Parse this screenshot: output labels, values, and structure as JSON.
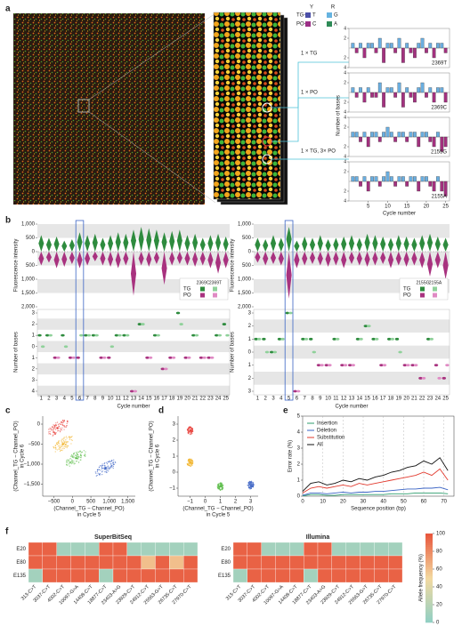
{
  "panel_labels": [
    "a",
    "b",
    "c",
    "d",
    "e",
    "f"
  ],
  "chart_data": [
    {
      "type": "bar",
      "ylabel": "Number of bases",
      "xlabel": "Cycle number",
      "xlim": [
        0,
        26
      ],
      "xticks": [
        5,
        10,
        15,
        20,
        25
      ],
      "ylim": [
        -4,
        4
      ],
      "yticks": [
        {
          "value": -4,
          "label": "4"
        },
        {
          "value": -2,
          "label": "2"
        },
        {
          "value": 2,
          "label": "2"
        },
        {
          "value": 4,
          "label": "4"
        }
      ],
      "colors": {
        "TG": "#6aaee0",
        "PO": "#a3317f"
      },
      "legend": {
        "headers": [
          "Y",
          "R"
        ],
        "rows": [
          "TG-",
          "PO-"
        ],
        "items": [
          {
            "name": "T",
            "color": "#4b4fa8"
          },
          {
            "name": "G",
            "color": "#66b3e0"
          },
          {
            "name": "C",
            "color": "#9c2f86"
          },
          {
            "name": "A",
            "color": "#2e8b57"
          }
        ]
      },
      "annotations": [
        "1 × TG",
        "1 × PO",
        "1 × TG, 3× PO"
      ],
      "subplots": [
        {
          "label": "2369T",
          "values": [
            1,
            -1,
            1,
            -2,
            1,
            1,
            -1,
            2,
            -3,
            1,
            1,
            -1,
            2,
            -3,
            1,
            -1,
            -2,
            1,
            2,
            -1,
            1,
            -2,
            1,
            1,
            -1
          ]
        },
        {
          "label": "2369C",
          "values": [
            1,
            -1,
            1,
            -2,
            1,
            -1,
            -1,
            2,
            -3,
            1,
            1,
            -1,
            2,
            -3,
            1,
            -1,
            -2,
            1,
            2,
            -1,
            1,
            -2,
            1,
            1,
            -2
          ]
        },
        {
          "label": "2155G",
          "values": [
            1,
            1,
            -1,
            1,
            -2,
            1,
            1,
            -1,
            1,
            2,
            1,
            -1,
            1,
            1,
            -1,
            1,
            1,
            -2,
            1,
            1,
            -1,
            -2,
            1,
            -3,
            -2
          ]
        },
        {
          "label": "2155A",
          "values": [
            1,
            1,
            -1,
            1,
            -2,
            1,
            1,
            -1,
            1,
            2,
            1,
            -1,
            1,
            1,
            -1,
            1,
            1,
            -2,
            1,
            1,
            -1,
            -2,
            1,
            -2,
            -3
          ]
        }
      ]
    },
    {
      "type": "violin",
      "ylabel": "Fluorescence intensity",
      "bases_ylabel": "Number of bases",
      "xlabel": "Cycle number",
      "categories": [
        1,
        2,
        3,
        4,
        5,
        6,
        7,
        8,
        9,
        10,
        11,
        12,
        13,
        14,
        15,
        16,
        17,
        18,
        19,
        20,
        21,
        22,
        23,
        24,
        25
      ],
      "highlight": 6,
      "ylim": [
        -2000,
        1000
      ],
      "yticks": [
        {
          "value": 1000,
          "label": "1,000"
        },
        500,
        0,
        {
          "value": -500,
          "label": "500"
        },
        {
          "value": -1000,
          "label": "1,000"
        },
        {
          "value": -1500,
          "label": "1,500"
        },
        {
          "value": -2000,
          "label": "2,000"
        }
      ],
      "tg": [
        600,
        500,
        550,
        400,
        450,
        700,
        600,
        650,
        500,
        600,
        700,
        650,
        800,
        900,
        850,
        800,
        700,
        750,
        800,
        600,
        650,
        500,
        600,
        650,
        550
      ],
      "po": [
        -500,
        -400,
        -600,
        -550,
        -450,
        -600,
        -500,
        -350,
        -500,
        -550,
        -600,
        -500,
        -1600,
        -500,
        -550,
        -450,
        -1200,
        -500,
        -450,
        -500,
        -550,
        -500,
        -600,
        -800,
        -600
      ],
      "colors": {
        "TG": "#2e8b3e",
        "PO": "#a8327f"
      },
      "legend_rows": [
        "TG",
        "PO"
      ],
      "bases_ylim": [
        -4,
        3
      ],
      "bases_yticks": [
        3,
        2,
        1,
        0,
        {
          "value": -1,
          "label": "1"
        },
        {
          "value": -2,
          "label": "2"
        },
        {
          "value": -3,
          "label": "3"
        },
        {
          "value": -4,
          "label": "4"
        }
      ],
      "bases": [
        {
          "name": "2369C",
          "color_tg": "#2e8b3e",
          "color_po": "#a8327f",
          "values": [
            1,
            1,
            -1,
            1,
            -1,
            -1,
            1,
            1,
            -1,
            -1,
            1,
            1,
            -4,
            2,
            -1,
            1,
            -2,
            -1,
            3,
            -1,
            1,
            -1,
            -1,
            1,
            2
          ]
        },
        {
          "name": "2369T",
          "color_tg": "#8fd19a",
          "color_po": "#e08ac4",
          "values": [
            0,
            1,
            -1,
            0,
            -1,
            1,
            1,
            1,
            -1,
            0,
            1,
            1,
            -4,
            2,
            -1,
            1,
            -2,
            -1,
            2,
            -1,
            1,
            -1,
            -1,
            1,
            1
          ]
        }
      ]
    },
    {
      "type": "violin",
      "ylabel": "Fluorescence intensity",
      "bases_ylabel": "Number of bases",
      "xlabel": "Cycle number",
      "categories": [
        1,
        2,
        3,
        4,
        5,
        6,
        7,
        8,
        9,
        10,
        11,
        12,
        13,
        14,
        15,
        16,
        17,
        18,
        19,
        20,
        21,
        22,
        23,
        24,
        25
      ],
      "highlight": 5,
      "ylim": [
        -2000,
        1000
      ],
      "yticks": [
        {
          "value": 1000,
          "label": "1,000"
        },
        500,
        0,
        {
          "value": -500,
          "label": "500"
        },
        {
          "value": -1000,
          "label": "1,000"
        },
        {
          "value": -1500,
          "label": "1,500"
        },
        {
          "value": -2000,
          "label": "2,000"
        }
      ],
      "tg": [
        500,
        450,
        600,
        500,
        900,
        400,
        550,
        500,
        600,
        450,
        500,
        550,
        600,
        500,
        650,
        600,
        550,
        500,
        600,
        550,
        500,
        600,
        650,
        550,
        500
      ],
      "po": [
        -400,
        -500,
        -450,
        -500,
        -1700,
        -600,
        -500,
        -450,
        -500,
        -550,
        -500,
        -600,
        -450,
        -500,
        -550,
        -500,
        -450,
        -600,
        -500,
        -550,
        -500,
        -600,
        -900,
        -600,
        -1000
      ],
      "colors": {
        "TG": "#2e8b3e",
        "PO": "#a8327f"
      },
      "legend_rows": [
        "TG",
        "PO"
      ],
      "bases_ylim": [
        -3,
        3
      ],
      "bases_yticks": [
        3,
        2,
        1,
        0,
        {
          "value": -1,
          "label": "1"
        },
        {
          "value": -2,
          "label": "2"
        },
        {
          "value": -3,
          "label": "3"
        }
      ],
      "bases": [
        {
          "name": "2155G",
          "color_tg": "#2e8b3e",
          "color_po": "#a8327f",
          "values": [
            1,
            1,
            0,
            1,
            3,
            -3,
            1,
            1,
            -1,
            -1,
            1,
            -1,
            -1,
            1,
            2,
            1,
            -1,
            1,
            1,
            -1,
            -1,
            -2,
            1,
            -1,
            -2
          ]
        },
        {
          "name": "2155A",
          "color_tg": "#8fd19a",
          "color_po": "#e08ac4",
          "values": [
            1,
            0,
            0,
            1,
            3,
            -3,
            1,
            0,
            -1,
            -1,
            1,
            -1,
            -1,
            1,
            2,
            1,
            -1,
            1,
            0,
            -1,
            -1,
            -2,
            1,
            -2,
            -1
          ]
        }
      ]
    },
    {
      "type": "scatter",
      "xlabel": [
        "(Channel_TG − Channel_PO)",
        "in Cycle 5"
      ],
      "ylabel": [
        "(Channel_TG − Channel_PO)",
        "in Cycle 6"
      ],
      "xlim": [
        -800,
        1700
      ],
      "ylim": [
        -1800,
        200
      ],
      "xticks": [
        {
          "value": -500,
          "label": "−500"
        },
        0,
        500,
        {
          "value": 1000,
          "label": "1,000"
        },
        {
          "value": 1500,
          "label": "1,500"
        }
      ],
      "yticks": [
        0,
        {
          "value": -500,
          "label": "−500"
        },
        {
          "value": -1000,
          "label": "−1,000"
        },
        {
          "value": -1500,
          "label": "−1,500"
        }
      ],
      "clusters": [
        {
          "x": -400,
          "y": -100,
          "color": "#e8413c"
        },
        {
          "x": -250,
          "y": -500,
          "color": "#f2b632"
        },
        {
          "x": 100,
          "y": -850,
          "color": "#5cbd4a"
        },
        {
          "x": 900,
          "y": -1100,
          "color": "#3a63c4"
        }
      ]
    },
    {
      "type": "scatter",
      "xlabel": [
        "(Channel_TG − Channel_PO)",
        "in Cycle 5"
      ],
      "ylabel": [
        "(Channel_TG − Channel_PO)",
        "in Cycle 6"
      ],
      "xlim": [
        -1.8,
        3.5
      ],
      "ylim": [
        -1.5,
        3.5
      ],
      "xticks": [
        {
          "value": -1,
          "label": "−1"
        },
        0,
        1,
        2,
        3
      ],
      "yticks": [
        {
          "value": -1,
          "label": "−1"
        },
        0,
        1,
        2,
        3
      ],
      "clusters": [
        {
          "x": -1,
          "y": 2.6,
          "color": "#e8413c"
        },
        {
          "x": -1,
          "y": 0.6,
          "color": "#f2b632"
        },
        {
          "x": 1,
          "y": -0.9,
          "color": "#5cbd4a"
        },
        {
          "x": 3,
          "y": -0.8,
          "color": "#3a63c4"
        }
      ]
    },
    {
      "type": "line",
      "xlabel": "Sequence position (bp)",
      "ylabel": "Error rate (%)",
      "xlim": [
        0,
        75
      ],
      "xticks": [
        0,
        10,
        20,
        30,
        40,
        50,
        60,
        70
      ],
      "ylim": [
        0,
        5
      ],
      "yticks": [
        0,
        1,
        2,
        3,
        4,
        5
      ],
      "grid": true,
      "x": [
        0,
        4,
        8,
        12,
        16,
        20,
        24,
        28,
        32,
        36,
        40,
        44,
        48,
        52,
        56,
        60,
        64,
        68,
        72
      ],
      "series": [
        {
          "name": "Insertion",
          "color": "#2e9e6e",
          "values": [
            0.02,
            0.1,
            0.1,
            0.05,
            0.05,
            0.1,
            0.1,
            0.1,
            0.1,
            0.1,
            0.1,
            0.15,
            0.15,
            0.15,
            0.2,
            0.2,
            0.2,
            0.2,
            0.15
          ]
        },
        {
          "name": "Deletion",
          "color": "#3a63c4",
          "values": [
            0.05,
            0.2,
            0.2,
            0.15,
            0.2,
            0.25,
            0.2,
            0.25,
            0.25,
            0.3,
            0.3,
            0.35,
            0.4,
            0.45,
            0.45,
            0.5,
            0.5,
            0.55,
            0.4
          ]
        },
        {
          "name": "Substitution",
          "color": "#e23a2e",
          "values": [
            0.2,
            0.5,
            0.6,
            0.5,
            0.6,
            0.7,
            0.6,
            0.8,
            0.7,
            0.8,
            0.9,
            1.0,
            1.1,
            1.2,
            1.3,
            1.5,
            1.3,
            1.7,
            1.0
          ]
        },
        {
          "name": "All",
          "color": "#111111",
          "values": [
            0.3,
            0.8,
            0.9,
            0.7,
            0.8,
            1.0,
            0.9,
            1.1,
            1.0,
            1.2,
            1.3,
            1.5,
            1.6,
            1.8,
            1.9,
            2.2,
            2.0,
            2.4,
            1.6
          ]
        }
      ]
    },
    {
      "type": "heatmap",
      "title": "SuperBitSeq",
      "rows": [
        "E20",
        "E80",
        "E135"
      ],
      "columns": [
        "313-C>T",
        "3037-C>T",
        "4002-C>T",
        "10097-G>A",
        "14408-C>T",
        "18877-C>T",
        "23403-A>G",
        "23929-C>T",
        "24912-C>T",
        "25563-G>T",
        "26735-C>T",
        "27970-C>T"
      ],
      "values": [
        [
          95,
          95,
          10,
          10,
          10,
          95,
          95,
          10,
          10,
          10,
          10,
          10
        ],
        [
          95,
          95,
          95,
          95,
          95,
          95,
          95,
          95,
          60,
          95,
          60,
          95
        ],
        [
          10,
          95,
          95,
          95,
          95,
          10,
          95,
          95,
          95,
          95,
          95,
          95
        ]
      ]
    },
    {
      "type": "heatmap",
      "title": "Illumina",
      "rows": [
        "E20",
        "E80",
        "E135"
      ],
      "columns": [
        "313-C>T",
        "3037-C>T",
        "4002-C>T",
        "10097-G>A",
        "14408-C>T",
        "18877-C>T",
        "23403-A>G",
        "23929-C>T",
        "24912-C>T",
        "25563-G>T",
        "26735-C>T",
        "27970-C>T"
      ],
      "values": [
        [
          95,
          95,
          10,
          10,
          10,
          95,
          95,
          10,
          10,
          10,
          10,
          10
        ],
        [
          95,
          95,
          95,
          95,
          95,
          95,
          95,
          95,
          95,
          95,
          95,
          95
        ],
        [
          10,
          95,
          95,
          95,
          95,
          10,
          95,
          95,
          95,
          95,
          95,
          95
        ]
      ],
      "colorbar": {
        "label": "Allele frequency (%)",
        "ticks": [
          0,
          20,
          40,
          60,
          80,
          100
        ],
        "colors": [
          "#8fcfc4",
          "#f3d9a0",
          "#e8553b"
        ]
      }
    }
  ]
}
